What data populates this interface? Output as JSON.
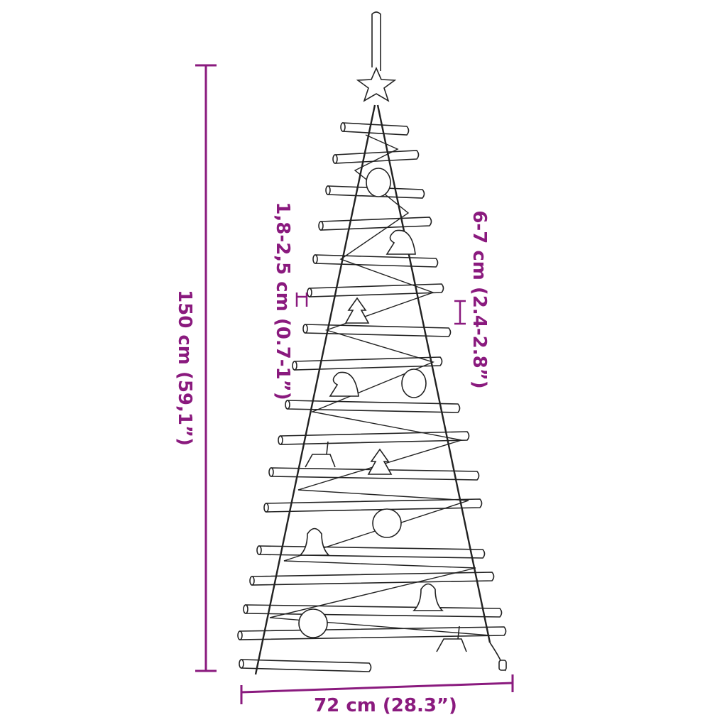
{
  "dimensions": {
    "height": "150 cm (59,1”)",
    "width": "72 cm (28.3”)",
    "stick_diameter": "1,8-2,5 cm (0.7-1”)",
    "stick_spacing": "6-7 cm (2.4-2.8”)"
  },
  "colors": {
    "dimension": "#8a1a7e",
    "drawing": "#222222"
  }
}
